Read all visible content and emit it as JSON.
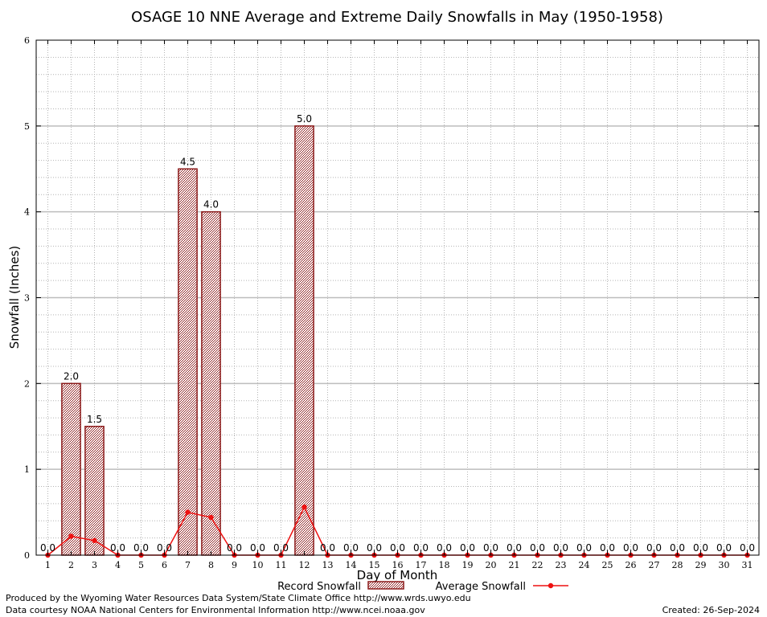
{
  "chart_data": {
    "type": "bar",
    "title": "OSAGE 10 NNE Average and Extreme Daily Snowfalls in May (1950-1958)",
    "xlabel": "Day of Month",
    "ylabel": "Snowfall (Inches)",
    "ylim": [
      0,
      6
    ],
    "yticks": [
      "0",
      "1",
      "2",
      "3",
      "4",
      "5",
      "6"
    ],
    "grid": true,
    "legend_position": "bottom",
    "categories": [
      "1",
      "2",
      "3",
      "4",
      "5",
      "6",
      "7",
      "8",
      "9",
      "10",
      "11",
      "12",
      "13",
      "14",
      "15",
      "16",
      "17",
      "18",
      "19",
      "20",
      "21",
      "22",
      "23",
      "24",
      "25",
      "26",
      "27",
      "28",
      "29",
      "30",
      "31"
    ],
    "series": [
      {
        "name": "Record Snowfall",
        "kind": "bar",
        "color": "#8b1a1a",
        "values": [
          0.0,
          2.0,
          1.5,
          0.0,
          0.0,
          0.0,
          4.5,
          4.0,
          0.0,
          0.0,
          0.0,
          5.0,
          0.0,
          0.0,
          0.0,
          0.0,
          0.0,
          0.0,
          0.0,
          0.0,
          0.0,
          0.0,
          0.0,
          0.0,
          0.0,
          0.0,
          0.0,
          0.0,
          0.0,
          0.0,
          0.0
        ],
        "labels": [
          "0.0",
          "2.0",
          "1.5",
          "0.0",
          "0.0",
          "0.0",
          "4.5",
          "4.0",
          "0.0",
          "0.0",
          "0.0",
          "5.0",
          "0.0",
          "0.0",
          "0.0",
          "0.0",
          "0.0",
          "0.0",
          "0.0",
          "0.0",
          "0.0",
          "0.0",
          "0.0",
          "0.0",
          "0.0",
          "0.0",
          "0.0",
          "0.0",
          "0.0",
          "0.0",
          "0.0"
        ]
      },
      {
        "name": "Average Snowfall",
        "kind": "line",
        "color": "#ee1111",
        "values": [
          0.0,
          0.22,
          0.17,
          0.0,
          0.0,
          0.0,
          0.5,
          0.44,
          0.0,
          0.0,
          0.0,
          0.56,
          0.0,
          0.0,
          0.0,
          0.0,
          0.0,
          0.0,
          0.0,
          0.0,
          0.0,
          0.0,
          0.0,
          0.0,
          0.0,
          0.0,
          0.0,
          0.0,
          0.0,
          0.0,
          0.0
        ]
      }
    ]
  },
  "footer": {
    "produced_by": "Produced by the Wyoming Water Resources Data System/State Climate Office http://www.wrds.uwyo.edu",
    "courtesy": "Data courtesy NOAA National Centers for Environmental Information http://www.ncei.noaa.gov",
    "created": "Created:  26-Sep-2024"
  }
}
